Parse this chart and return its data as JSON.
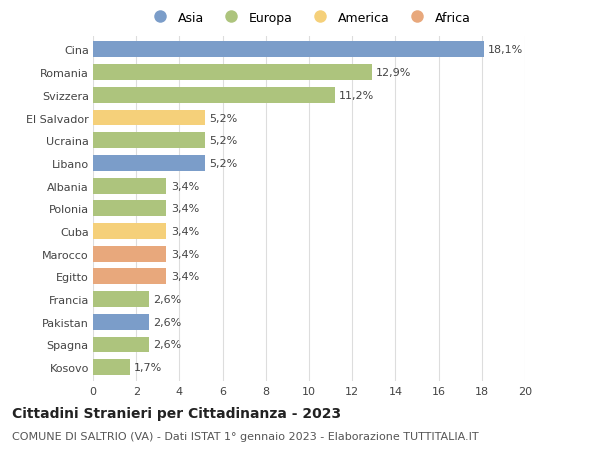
{
  "categories": [
    "Cina",
    "Romania",
    "Svizzera",
    "El Salvador",
    "Ucraina",
    "Libano",
    "Albania",
    "Polonia",
    "Cuba",
    "Marocco",
    "Egitto",
    "Francia",
    "Pakistan",
    "Spagna",
    "Kosovo"
  ],
  "values": [
    18.1,
    12.9,
    11.2,
    5.2,
    5.2,
    5.2,
    3.4,
    3.4,
    3.4,
    3.4,
    3.4,
    2.6,
    2.6,
    2.6,
    1.7
  ],
  "labels": [
    "18,1%",
    "12,9%",
    "11,2%",
    "5,2%",
    "5,2%",
    "5,2%",
    "3,4%",
    "3,4%",
    "3,4%",
    "3,4%",
    "3,4%",
    "2,6%",
    "2,6%",
    "2,6%",
    "1,7%"
  ],
  "continents": [
    "Asia",
    "Europa",
    "Europa",
    "America",
    "Europa",
    "Asia",
    "Europa",
    "Europa",
    "America",
    "Africa",
    "Africa",
    "Europa",
    "Asia",
    "Europa",
    "Europa"
  ],
  "colors": {
    "Asia": "#7b9dc9",
    "Europa": "#adc47d",
    "America": "#f5d07a",
    "Africa": "#e8a87c"
  },
  "legend_order": [
    "Asia",
    "Europa",
    "America",
    "Africa"
  ],
  "title": "Cittadini Stranieri per Cittadinanza - 2023",
  "subtitle": "COMUNE DI SALTRIO (VA) - Dati ISTAT 1° gennaio 2023 - Elaborazione TUTTITALIA.IT",
  "xlim": [
    0,
    20
  ],
  "xticks": [
    0,
    2,
    4,
    6,
    8,
    10,
    12,
    14,
    16,
    18,
    20
  ],
  "background_color": "#ffffff",
  "grid_color": "#dddddd",
  "bar_height": 0.7,
  "label_fontsize": 8,
  "tick_fontsize": 8,
  "title_fontsize": 10,
  "subtitle_fontsize": 8
}
